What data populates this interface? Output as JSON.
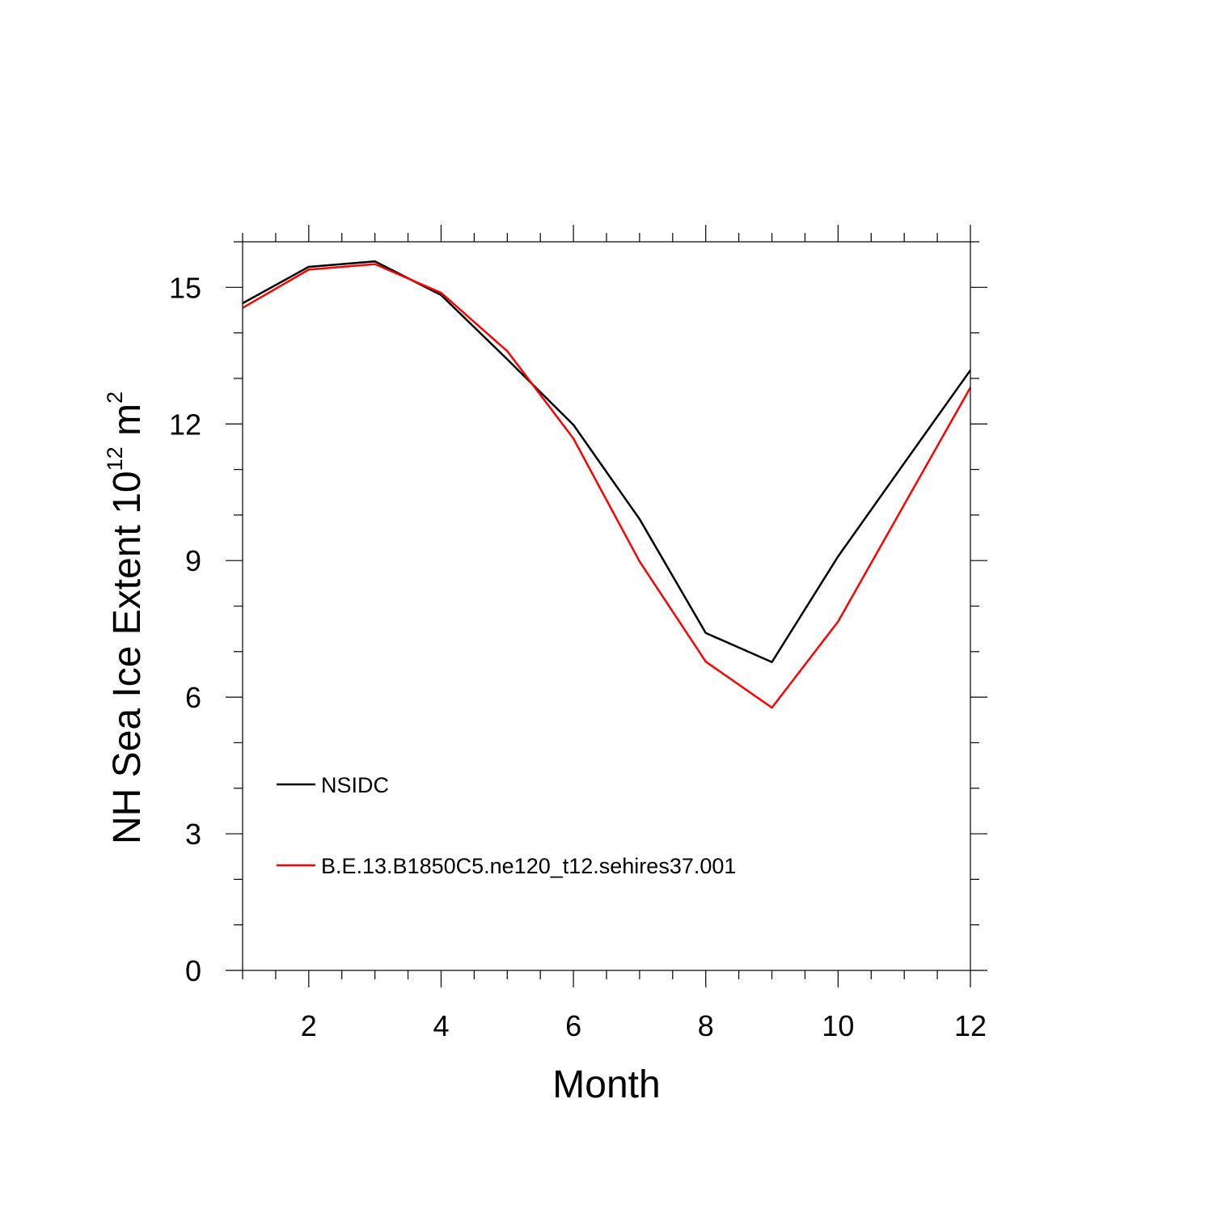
{
  "chart_data": {
    "type": "line",
    "title": "",
    "xlabel": "Month",
    "ylabel": {
      "prefix": "NH Sea Ice Extent 10",
      "exp1": "12",
      "mid": " m",
      "exp2": "2"
    },
    "xlim": [
      1,
      12
    ],
    "ylim": [
      0,
      16
    ],
    "x_ticks": [
      2,
      4,
      6,
      8,
      10,
      12
    ],
    "y_ticks": [
      0,
      3,
      6,
      9,
      12,
      15
    ],
    "grid": false,
    "legend_position": "bottom-left inside",
    "x": [
      1,
      2,
      3,
      4,
      5,
      6,
      7,
      8,
      9,
      10,
      11,
      12
    ],
    "series": [
      {
        "name": "NSIDC",
        "color": "#000000",
        "values": [
          14.65,
          15.45,
          15.57,
          14.83,
          13.42,
          11.98,
          9.91,
          7.41,
          6.77,
          9.09,
          11.14,
          13.18
        ]
      },
      {
        "name": "B.E.13.B1850C5.ne120_t12.sehires37.001",
        "color": "#ff0000",
        "values": [
          14.55,
          15.39,
          15.51,
          14.88,
          13.6,
          11.68,
          8.98,
          6.78,
          5.77,
          7.66,
          10.23,
          12.8
        ]
      }
    ]
  }
}
